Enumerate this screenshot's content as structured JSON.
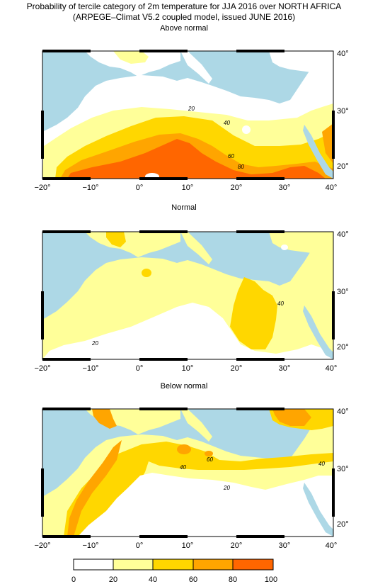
{
  "header": {
    "title_line1": "Probability of tercile category of 2m temperature for JJA 2016 over NORTH AFRICA",
    "title_line2": "(ARPEGE–Climat V5.2 coupled model, issued JUNE  2016)"
  },
  "panels": [
    {
      "title": "Above normal",
      "contour_labels": [
        "20",
        "40",
        "60",
        "80"
      ]
    },
    {
      "title": "Normal",
      "contour_labels": [
        "20",
        "40"
      ]
    },
    {
      "title": "Below normal",
      "contour_labels": [
        "20",
        "40",
        "60",
        "40"
      ]
    }
  ],
  "axes": {
    "x_ticks": [
      "−20°",
      "−10°",
      "0°",
      "10°",
      "20°",
      "30°",
      "40°"
    ],
    "y_ticks": [
      "40°",
      "30°",
      "20°"
    ]
  },
  "colorbar": {
    "labels": [
      "0",
      "20",
      "40",
      "60",
      "80",
      "100"
    ],
    "colors": [
      "#ffffff",
      "#ffff99",
      "#ffd700",
      "#ffa500",
      "#ff6600"
    ]
  },
  "colors": {
    "sea": "#add8e6",
    "land_low": "#ffffff",
    "p20": "#ffff99",
    "p40": "#ffd700",
    "p60": "#ffa500",
    "p80": "#ff6600"
  }
}
